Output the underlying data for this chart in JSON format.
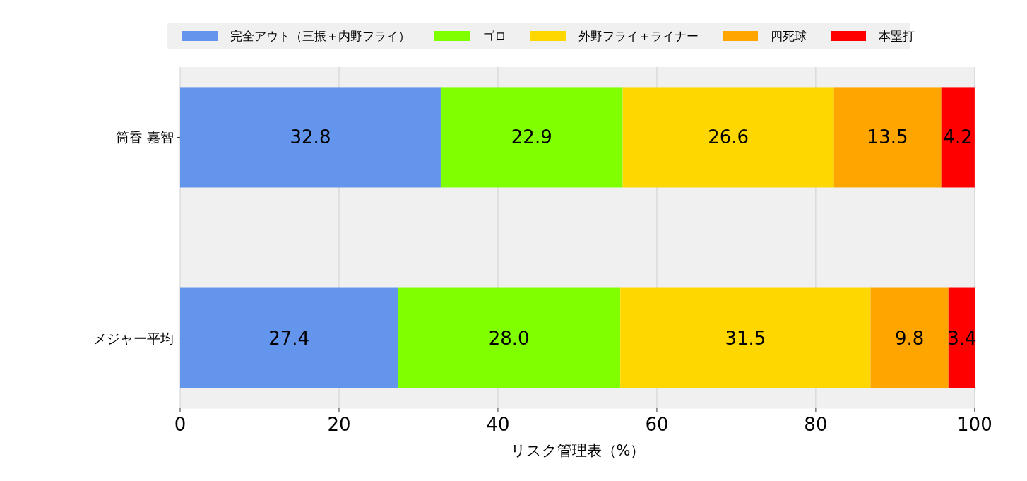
{
  "chart_data": {
    "type": "bar",
    "orientation": "horizontal",
    "stacked": true,
    "xlabel": "リスク管理表（%）",
    "categories": [
      "筒香 嘉智",
      "メジャー平均"
    ],
    "series": [
      {
        "name": "完全アウト（三振＋内野フライ）",
        "color": "#6495ed",
        "values": [
          32.8,
          27.4
        ]
      },
      {
        "name": "ゴロ",
        "color": "#7fff00",
        "values": [
          22.9,
          28.0
        ]
      },
      {
        "name": "外野フライ＋ライナー",
        "color": "#ffd700",
        "values": [
          26.6,
          31.5
        ]
      },
      {
        "name": "四死球",
        "color": "#ffa500",
        "values": [
          13.5,
          9.8
        ]
      },
      {
        "name": "本塁打",
        "color": "#ff0000",
        "values": [
          4.2,
          3.4
        ]
      }
    ],
    "value_labels": [
      [
        "32.8",
        "27.4"
      ],
      [
        "22.9",
        "28.0"
      ],
      [
        "26.6",
        "31.5"
      ],
      [
        "13.5",
        "9.8"
      ],
      [
        "4.2",
        "3.4"
      ]
    ],
    "xlim": [
      0,
      100.1
    ],
    "xticks": [
      0,
      20,
      40,
      60,
      80,
      100
    ],
    "grid": "x",
    "legend": "top"
  }
}
